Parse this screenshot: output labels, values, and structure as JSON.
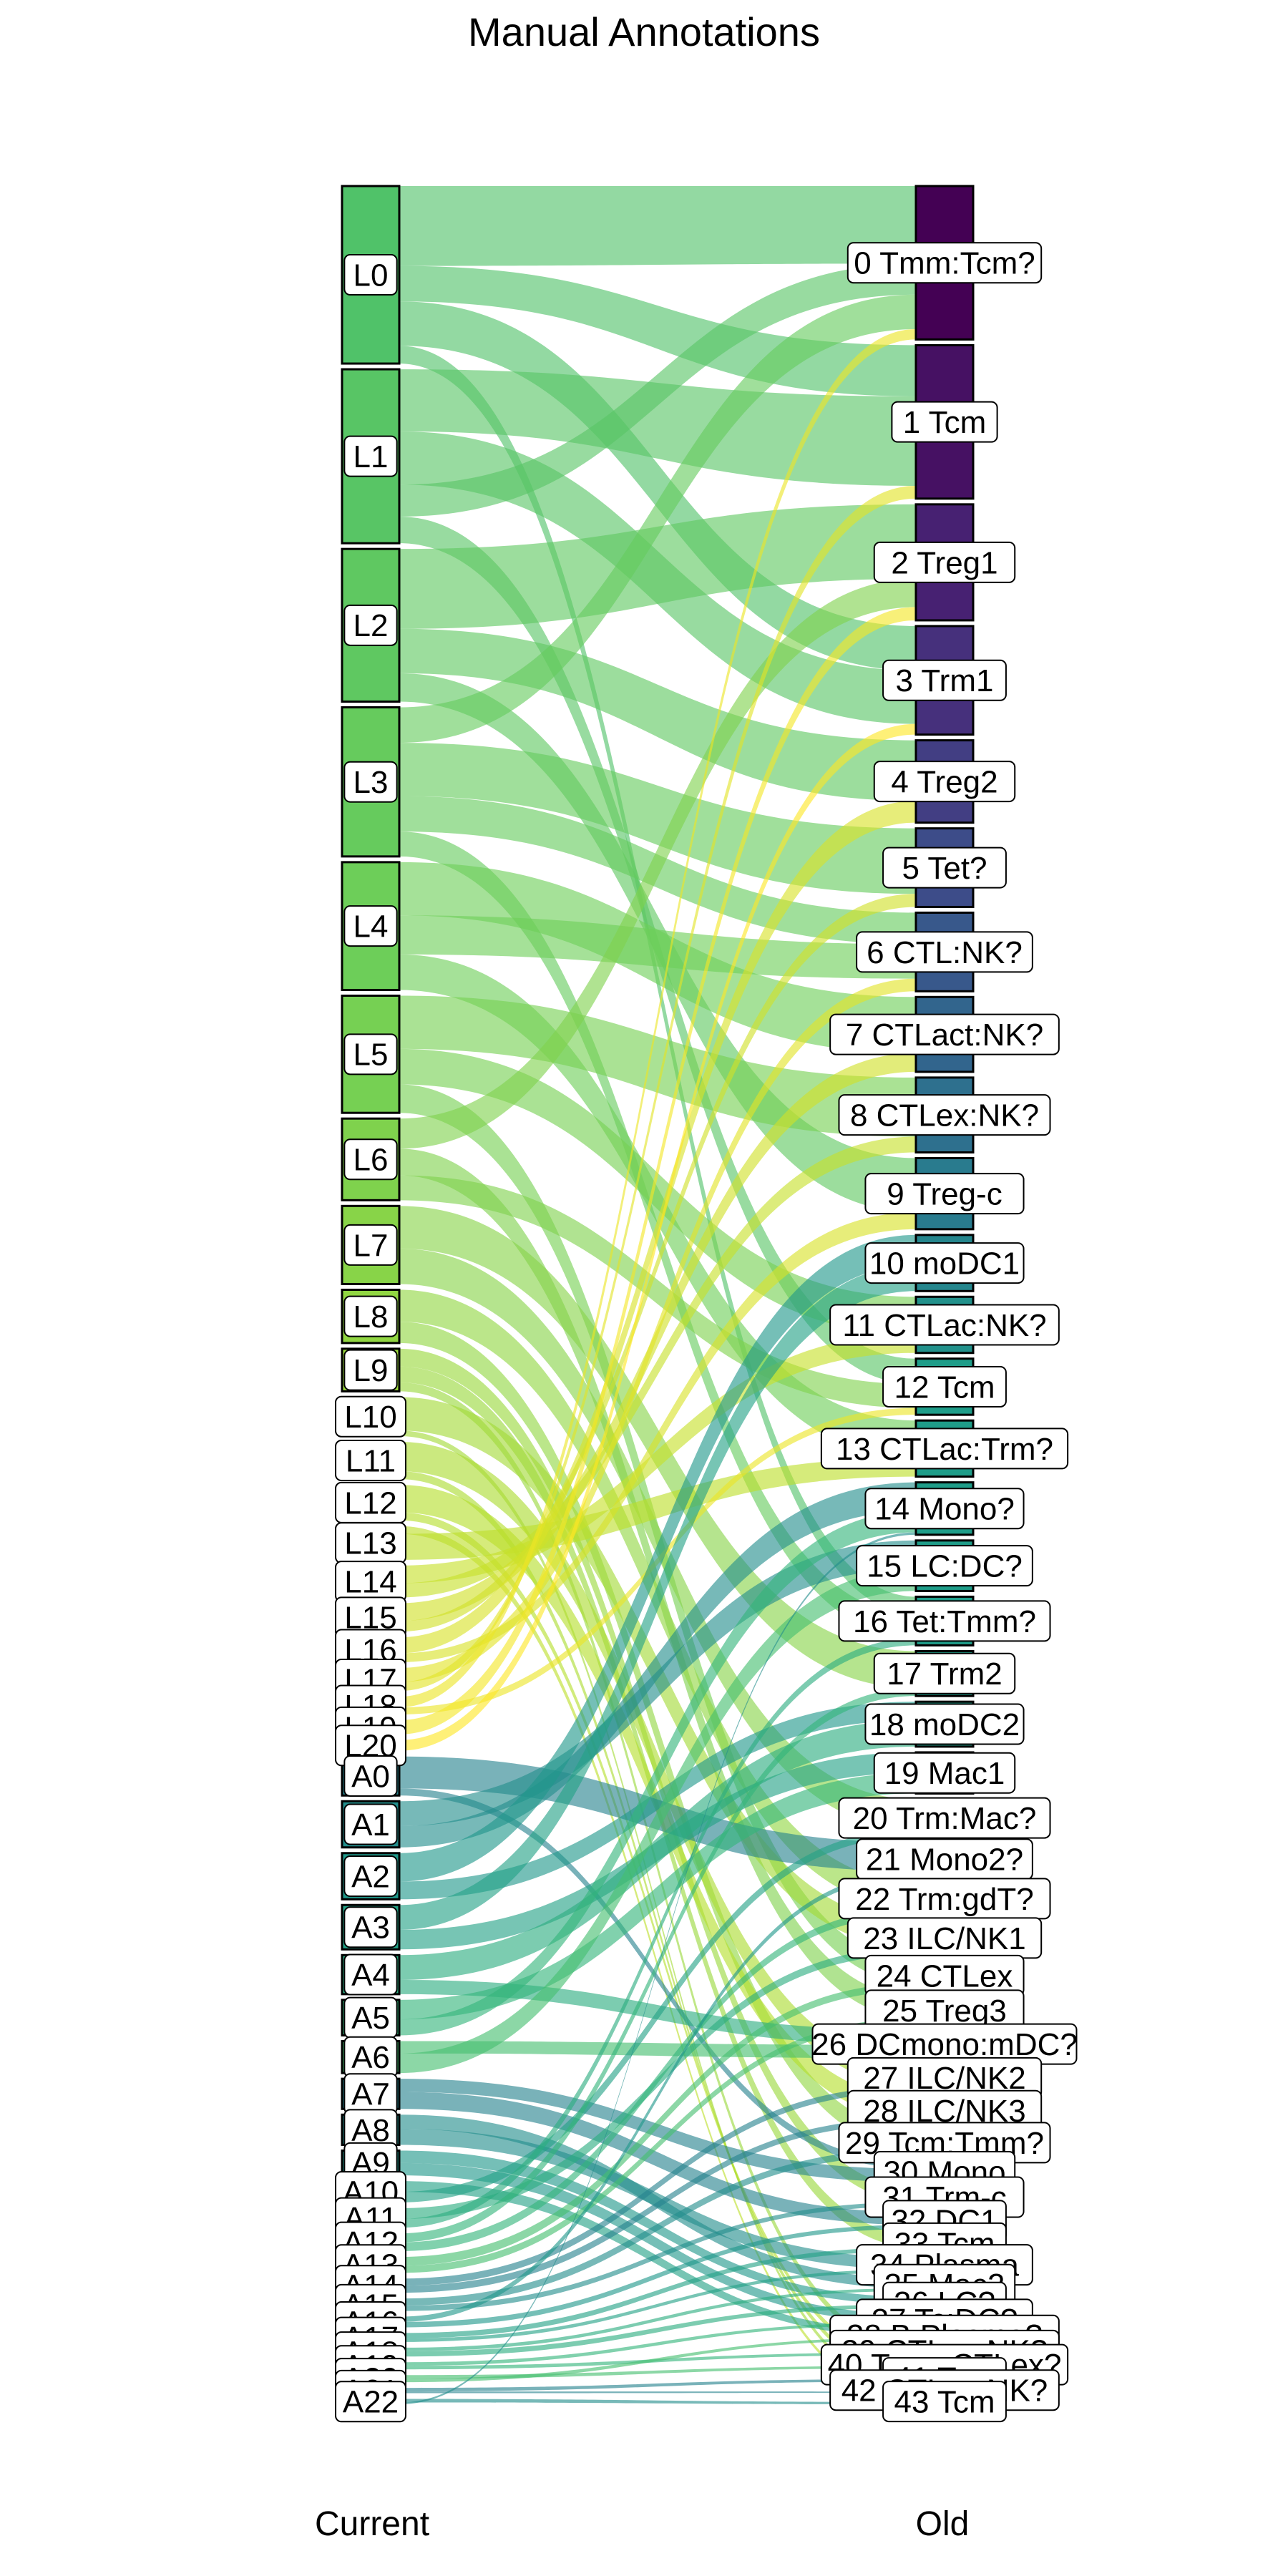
{
  "title": "Manual Annotations",
  "axis_labels": {
    "left": "Current",
    "right": "Old"
  },
  "colors": {
    "viridis": [
      "#440154",
      "#482878",
      "#3e4a89",
      "#31688e",
      "#26828e",
      "#1f9e89",
      "#35b779",
      "#6ece58",
      "#b5de2b",
      "#fde725"
    ],
    "node_stroke": "#000000",
    "label_bg": "#ffffff"
  },
  "current_nodes": [
    {
      "label": "L0",
      "size": 1.0
    },
    {
      "label": "L1",
      "size": 0.98
    },
    {
      "label": "L2",
      "size": 0.86
    },
    {
      "label": "L3",
      "size": 0.84
    },
    {
      "label": "L4",
      "size": 0.72
    },
    {
      "label": "L5",
      "size": 0.66
    },
    {
      "label": "L6",
      "size": 0.46
    },
    {
      "label": "L7",
      "size": 0.44
    },
    {
      "label": "L8",
      "size": 0.3
    },
    {
      "label": "L9",
      "size": 0.24
    },
    {
      "label": "L10",
      "size": 0.22
    },
    {
      "label": "L11",
      "size": 0.21
    },
    {
      "label": "L12",
      "size": 0.2
    },
    {
      "label": "L13",
      "size": 0.19
    },
    {
      "label": "L14",
      "size": 0.18
    },
    {
      "label": "L15",
      "size": 0.16
    },
    {
      "label": "L16",
      "size": 0.14
    },
    {
      "label": "L17",
      "size": 0.13
    },
    {
      "label": "L18",
      "size": 0.1
    },
    {
      "label": "L19",
      "size": 0.08
    },
    {
      "label": "L20",
      "size": 0.06
    },
    {
      "label": "A0",
      "size": 0.22
    },
    {
      "label": "A1",
      "size": 0.26
    },
    {
      "label": "A2",
      "size": 0.26
    },
    {
      "label": "A3",
      "size": 0.25
    },
    {
      "label": "A4",
      "size": 0.22
    },
    {
      "label": "A5",
      "size": 0.2
    },
    {
      "label": "A6",
      "size": 0.18
    },
    {
      "label": "A7",
      "size": 0.17
    },
    {
      "label": "A8",
      "size": 0.17
    },
    {
      "label": "A9",
      "size": 0.14
    },
    {
      "label": "A10",
      "size": 0.12
    },
    {
      "label": "A11",
      "size": 0.11
    },
    {
      "label": "A12",
      "size": 0.1
    },
    {
      "label": "A13",
      "size": 0.09
    },
    {
      "label": "A14",
      "size": 0.08
    },
    {
      "label": "A15",
      "size": 0.07
    },
    {
      "label": "A16",
      "size": 0.06
    },
    {
      "label": "A17",
      "size": 0.05
    },
    {
      "label": "A18",
      "size": 0.05
    },
    {
      "label": "A19",
      "size": 0.04
    },
    {
      "label": "A20",
      "size": 0.04
    },
    {
      "label": "A21",
      "size": 0.03
    },
    {
      "label": "A22",
      "size": 0.03
    }
  ],
  "old_nodes": [
    {
      "label": "0 Tmm:Tcm?",
      "size": 0.82
    },
    {
      "label": "1 Tcm",
      "size": 0.82
    },
    {
      "label": "2 Treg1",
      "size": 0.62
    },
    {
      "label": "3 Trm1",
      "size": 0.58
    },
    {
      "label": "4 Treg2",
      "size": 0.44
    },
    {
      "label": "5 Tet?",
      "size": 0.42
    },
    {
      "label": "6 CTL:NK?",
      "size": 0.42
    },
    {
      "label": "7 CTLact:NK?",
      "size": 0.4
    },
    {
      "label": "8 CTLex:NK?",
      "size": 0.4
    },
    {
      "label": "9 Treg-c",
      "size": 0.38
    },
    {
      "label": "10 moDC1",
      "size": 0.3
    },
    {
      "label": "11 CTLac:NK?",
      "size": 0.3
    },
    {
      "label": "12 Tcm",
      "size": 0.3
    },
    {
      "label": "13 CTLac:Trm?",
      "size": 0.3
    },
    {
      "label": "14 Mono?",
      "size": 0.28
    },
    {
      "label": "15 LC:DC?",
      "size": 0.27
    },
    {
      "label": "16 Tet:Tmm?",
      "size": 0.26
    },
    {
      "label": "17 Trm2",
      "size": 0.24
    },
    {
      "label": "18 moDC2",
      "size": 0.24
    },
    {
      "label": "19 Mac1",
      "size": 0.22
    },
    {
      "label": "20 Trm:Mac?",
      "size": 0.2
    },
    {
      "label": "21 Mono2?",
      "size": 0.18
    },
    {
      "label": "22 Trm:gdT?",
      "size": 0.18
    },
    {
      "label": "23 ILC/NK1",
      "size": 0.18
    },
    {
      "label": "24 CTLex",
      "size": 0.16
    },
    {
      "label": "25 Treg3",
      "size": 0.15
    },
    {
      "label": "26 DCmono:mDC?",
      "size": 0.15
    },
    {
      "label": "27 ILC/NK2",
      "size": 0.15
    },
    {
      "label": "28 ILC/NK3",
      "size": 0.14
    },
    {
      "label": "29 Tcm:Tmm?",
      "size": 0.14
    },
    {
      "label": "30 Mono",
      "size": 0.11
    },
    {
      "label": "31 Trm-c",
      "size": 0.1
    },
    {
      "label": "32 DC1",
      "size": 0.09
    },
    {
      "label": "33 Tcm",
      "size": 0.09
    },
    {
      "label": "34 Plasma",
      "size": 0.08
    },
    {
      "label": "35 Mac2",
      "size": 0.07
    },
    {
      "label": "36 LC?",
      "size": 0.06
    },
    {
      "label": "37 Tc:DC?",
      "size": 0.06
    },
    {
      "label": "38 B:Plasma?",
      "size": 0.05
    },
    {
      "label": "39 CTLex:NK?",
      "size": 0.05
    },
    {
      "label": "40 Tmm:CTLex?",
      "size": 0.04
    },
    {
      "label": "41 Tcm",
      "size": 0.04
    },
    {
      "label": "42 CTLex:NK?",
      "size": 0.03
    },
    {
      "label": "43 Tcm",
      "size": 0.03
    }
  ],
  "flows": [
    {
      "source": "L0",
      "target": "0 Tmm:Tcm?",
      "value": 0.45
    },
    {
      "source": "L0",
      "target": "1 Tcm",
      "value": 0.2
    },
    {
      "source": "L0",
      "target": "3 Trm1",
      "value": 0.25
    },
    {
      "source": "L0",
      "target": "16 Tet:Tmm?",
      "value": 0.1
    },
    {
      "source": "L1",
      "target": "1 Tcm",
      "value": 0.35
    },
    {
      "source": "L1",
      "target": "3 Trm1",
      "value": 0.3
    },
    {
      "source": "L1",
      "target": "0 Tmm:Tcm?",
      "value": 0.18
    },
    {
      "source": "L1",
      "target": "12 Tcm",
      "value": 0.15
    },
    {
      "source": "L2",
      "target": "2 Treg1",
      "value": 0.45
    },
    {
      "source": "L2",
      "target": "4 Treg2",
      "value": 0.25
    },
    {
      "source": "L2",
      "target": "9 Treg-c",
      "value": 0.16
    },
    {
      "source": "L3",
      "target": "0 Tmm:Tcm?",
      "value": 0.2
    },
    {
      "source": "L3",
      "target": "5 Tet?",
      "value": 0.3
    },
    {
      "source": "L3",
      "target": "6 CTL:NK?",
      "value": 0.2
    },
    {
      "source": "L3",
      "target": "16 Tet:Tmm?",
      "value": 0.14
    },
    {
      "source": "L4",
      "target": "7 CTLact:NK?",
      "value": 0.3
    },
    {
      "source": "L4",
      "target": "6 CTL:NK?",
      "value": 0.22
    },
    {
      "source": "L4",
      "target": "13 CTLac:Trm?",
      "value": 0.2
    },
    {
      "source": "L5",
      "target": "8 CTLex:NK?",
      "value": 0.3
    },
    {
      "source": "L5",
      "target": "11 CTLac:NK?",
      "value": 0.2
    },
    {
      "source": "L5",
      "target": "24 CTLex",
      "value": 0.16
    },
    {
      "source": "L6",
      "target": "2 Treg1",
      "value": 0.17
    },
    {
      "source": "L6",
      "target": "25 Treg3",
      "value": 0.15
    },
    {
      "source": "L6",
      "target": "12 Tcm",
      "value": 0.14
    },
    {
      "source": "L7",
      "target": "17 Trm2",
      "value": 0.24
    },
    {
      "source": "L7",
      "target": "20 Trm:Mac?",
      "value": 0.2
    },
    {
      "source": "L8",
      "target": "22 Trm:gdT?",
      "value": 0.18
    },
    {
      "source": "L8",
      "target": "29 Tcm:Tmm?",
      "value": 0.12
    },
    {
      "source": "L9",
      "target": "31 Trm-c",
      "value": 0.1
    },
    {
      "source": "L9",
      "target": "33 Tcm",
      "value": 0.09
    },
    {
      "source": "L9",
      "target": "39 CTLex:NK?",
      "value": 0.05
    },
    {
      "source": "L10",
      "target": "23 ILC/NK1",
      "value": 0.18
    },
    {
      "source": "L10",
      "target": "42 CTLex:NK?",
      "value": 0.03
    },
    {
      "source": "L11",
      "target": "27 ILC/NK2",
      "value": 0.15
    },
    {
      "source": "L11",
      "target": "41 Tcm",
      "value": 0.04
    },
    {
      "source": "L12",
      "target": "28 ILC/NK3",
      "value": 0.14
    },
    {
      "source": "L12",
      "target": "40 Tmm:CTLex?",
      "value": 0.04
    },
    {
      "source": "L13",
      "target": "43 Tcm",
      "value": 0.03
    },
    {
      "source": "L13",
      "target": "13 CTLac:Trm?",
      "value": 0.1
    },
    {
      "source": "L14",
      "target": "11 CTLac:NK?",
      "value": 0.1
    },
    {
      "source": "L14",
      "target": "8 CTLex:NK?",
      "value": 0.08
    },
    {
      "source": "L15",
      "target": "7 CTLact:NK?",
      "value": 0.1
    },
    {
      "source": "L15",
      "target": "5 Tet?",
      "value": 0.06
    },
    {
      "source": "L16",
      "target": "4 Treg2",
      "value": 0.09
    },
    {
      "source": "L16",
      "target": "9 Treg-c",
      "value": 0.05
    },
    {
      "source": "L17",
      "target": "6 CTL:NK?",
      "value": 0.08
    },
    {
      "source": "L17",
      "target": "1 Tcm",
      "value": 0.05
    },
    {
      "source": "L18",
      "target": "0 Tmm:Tcm?",
      "value": 0.06
    },
    {
      "source": "L18",
      "target": "12 Tcm",
      "value": 0.04
    },
    {
      "source": "L19",
      "target": "2 Treg1",
      "value": 0.08
    },
    {
      "source": "L20",
      "target": "3 Trm1",
      "value": 0.06
    },
    {
      "source": "A0",
      "target": "21 Mono2?",
      "value": 0.18
    },
    {
      "source": "A0",
      "target": "30 Mono",
      "value": 0.04
    },
    {
      "source": "A1",
      "target": "15 LC:DC?",
      "value": 0.14
    },
    {
      "source": "A1",
      "target": "14 Mono?",
      "value": 0.12
    },
    {
      "source": "A2",
      "target": "10 moDC1",
      "value": 0.16
    },
    {
      "source": "A2",
      "target": "18 moDC2",
      "value": 0.1
    },
    {
      "source": "A3",
      "target": "10 moDC1",
      "value": 0.14
    },
    {
      "source": "A3",
      "target": "19 Mac1",
      "value": 0.11
    },
    {
      "source": "A4",
      "target": "18 moDC2",
      "value": 0.14
    },
    {
      "source": "A4",
      "target": "26 DCmono:mDC?",
      "value": 0.08
    },
    {
      "source": "A5",
      "target": "19 Mac1",
      "value": 0.11
    },
    {
      "source": "A5",
      "target": "14 Mono?",
      "value": 0.09
    },
    {
      "source": "A6",
      "target": "26 DCmono:mDC?",
      "value": 0.07
    },
    {
      "source": "A6",
      "target": "15 LC:DC?",
      "value": 0.11
    },
    {
      "source": "A7",
      "target": "30 Mono",
      "value": 0.07
    },
    {
      "source": "A7",
      "target": "32 DC1",
      "value": 0.09
    },
    {
      "source": "A8",
      "target": "35 Mac2",
      "value": 0.07
    },
    {
      "source": "A8",
      "target": "34 Plasma",
      "value": 0.08
    },
    {
      "source": "A9",
      "target": "36 LC?",
      "value": 0.06
    },
    {
      "source": "A9",
      "target": "37 Tc:DC?",
      "value": 0.06
    },
    {
      "source": "A10",
      "target": "38 B:Plasma?",
      "value": 0.05
    },
    {
      "source": "A10",
      "target": "20 Trm:Mac?",
      "value": 0.05
    },
    {
      "source": "A11",
      "target": "23 ILC/NK1",
      "value": 0.05
    },
    {
      "source": "A11",
      "target": "16 Tet:Tmm?",
      "value": 0.04
    },
    {
      "source": "A12",
      "target": "17 Trm2",
      "value": 0.05
    },
    {
      "source": "A12",
      "target": "22 Trm:gdT?",
      "value": 0.05
    },
    {
      "source": "A13",
      "target": "24 CTLex",
      "value": 0.05
    },
    {
      "source": "A13",
      "target": "25 Treg3",
      "value": 0.04
    },
    {
      "source": "A14",
      "target": "27 ILC/NK2",
      "value": 0.04
    },
    {
      "source": "A14",
      "target": "28 ILC/NK3",
      "value": 0.04
    },
    {
      "source": "A15",
      "target": "29 Tcm:Tmm?",
      "value": 0.04
    },
    {
      "source": "A15",
      "target": "31 Trm-c",
      "value": 0.03
    },
    {
      "source": "A16",
      "target": "21 Mono2?",
      "value": 0.03
    },
    {
      "source": "A16",
      "target": "32 DC1",
      "value": 0.03
    },
    {
      "source": "A17",
      "target": "33 Tcm",
      "value": 0.03
    },
    {
      "source": "A17",
      "target": "34 Plasma",
      "value": 0.02
    },
    {
      "source": "A18",
      "target": "35 Mac2",
      "value": 0.02
    },
    {
      "source": "A18",
      "target": "36 LC?",
      "value": 0.03
    },
    {
      "source": "A19",
      "target": "37 Tc:DC?",
      "value": 0.02
    },
    {
      "source": "A19",
      "target": "39 CTLex:NK?",
      "value": 0.02
    },
    {
      "source": "A20",
      "target": "40 Tmm:CTLex?",
      "value": 0.02
    },
    {
      "source": "A20",
      "target": "38 B:Plasma?",
      "value": 0.02
    },
    {
      "source": "A21",
      "target": "41 Tcm",
      "value": 0.02
    },
    {
      "source": "A21",
      "target": "42 CTLex:NK?",
      "value": 0.01
    },
    {
      "source": "A22",
      "target": "43 Tcm",
      "value": 0.02
    },
    {
      "source": "A22",
      "target": "14 Mono?",
      "value": 0.01
    }
  ]
}
